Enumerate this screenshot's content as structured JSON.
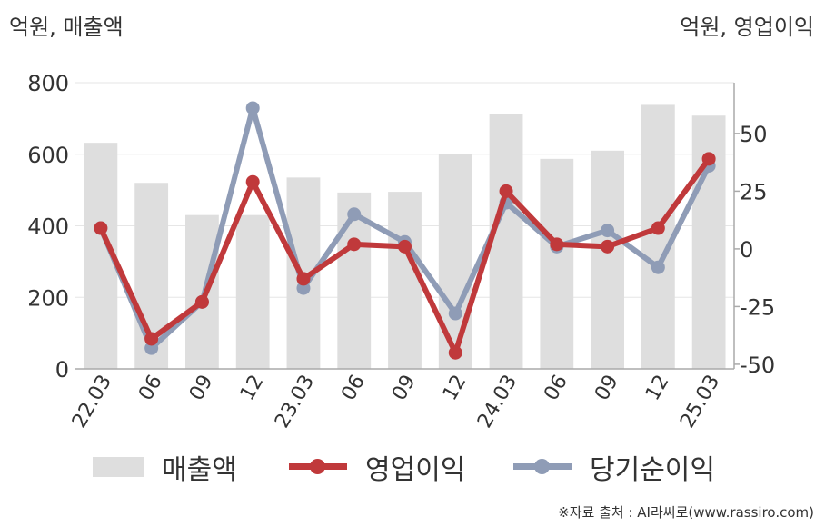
{
  "left_unit_label": "억원, 매출액",
  "right_unit_label": "억원, 영업이익",
  "source": "※자료 출처 : AI라씨로(www.rassiro.com)",
  "colors": {
    "bar": "#dedede",
    "operating_profit": "#c0393b",
    "net_income": "#8f9cb6",
    "grid": "#e6e6e6",
    "axis": "#aaaaaa"
  },
  "chart_data": {
    "type": "bar",
    "categories": [
      "22.03",
      "06",
      "09",
      "12",
      "23.03",
      "06",
      "09",
      "12",
      "24.03",
      "06",
      "09",
      "12",
      "25.03"
    ],
    "left_axis": {
      "label": "억원, 매출액",
      "ylim": [
        0,
        800
      ],
      "ticks": [
        0,
        200,
        400,
        600,
        800
      ]
    },
    "right_axis": {
      "label": "억원, 영업이익",
      "ylim": [
        -52,
        72
      ],
      "ticks": [
        -50,
        -25,
        0,
        25,
        50
      ]
    },
    "grid": true,
    "legend_position": "bottom",
    "series": [
      {
        "name": "매출액",
        "type": "bar",
        "axis": "left",
        "values": [
          632,
          520,
          430,
          430,
          535,
          493,
          495,
          600,
          712,
          587,
          610,
          738,
          708
        ]
      },
      {
        "name": "영업이익",
        "type": "line",
        "axis": "right",
        "values": [
          9,
          -39,
          -23,
          29,
          -13,
          2,
          1,
          -45,
          25,
          2,
          1,
          9,
          39
        ]
      },
      {
        "name": "당기순이익",
        "type": "line",
        "axis": "right",
        "values": [
          9,
          -43,
          -23,
          61,
          -17,
          15,
          3,
          -28,
          20,
          1,
          8,
          -8,
          36
        ]
      }
    ]
  },
  "legend": [
    {
      "label": "매출액"
    },
    {
      "label": "영업이익"
    },
    {
      "label": "당기순이익"
    }
  ]
}
